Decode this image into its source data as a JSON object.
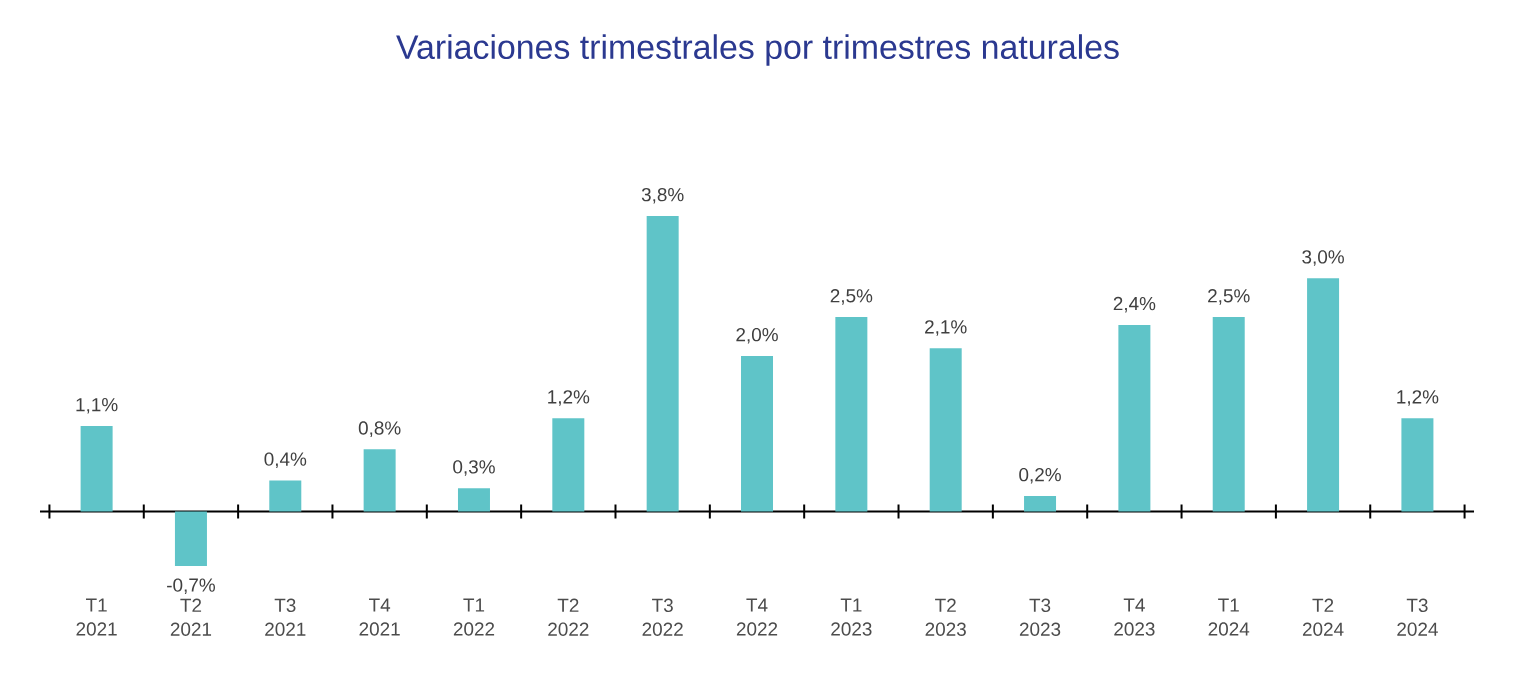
{
  "chart_data": {
    "type": "bar",
    "title": "Variaciones trimestrales por trimestres naturales",
    "categories": [
      "T1 2021",
      "T2 2021",
      "T3 2021",
      "T4 2021",
      "T1 2022",
      "T2 2022",
      "T3 2022",
      "T4 2022",
      "T1 2023",
      "T2 2023",
      "T3 2023",
      "T4 2023",
      "T1 2024",
      "T2 2024",
      "T3 2024"
    ],
    "values": [
      1.1,
      -0.7,
      0.4,
      0.8,
      0.3,
      1.2,
      3.8,
      2.0,
      2.5,
      2.1,
      0.2,
      2.4,
      2.5,
      3.0,
      1.2
    ],
    "value_labels": [
      "1,1%",
      "-0,7%",
      "0,4%",
      "0,8%",
      "0,3%",
      "1,2%",
      "3,8%",
      "2,0%",
      "2,5%",
      "2,1%",
      "0,2%",
      "2,4%",
      "2,5%",
      "3,0%",
      "1,2%"
    ],
    "color": "#5fc4c8"
  }
}
